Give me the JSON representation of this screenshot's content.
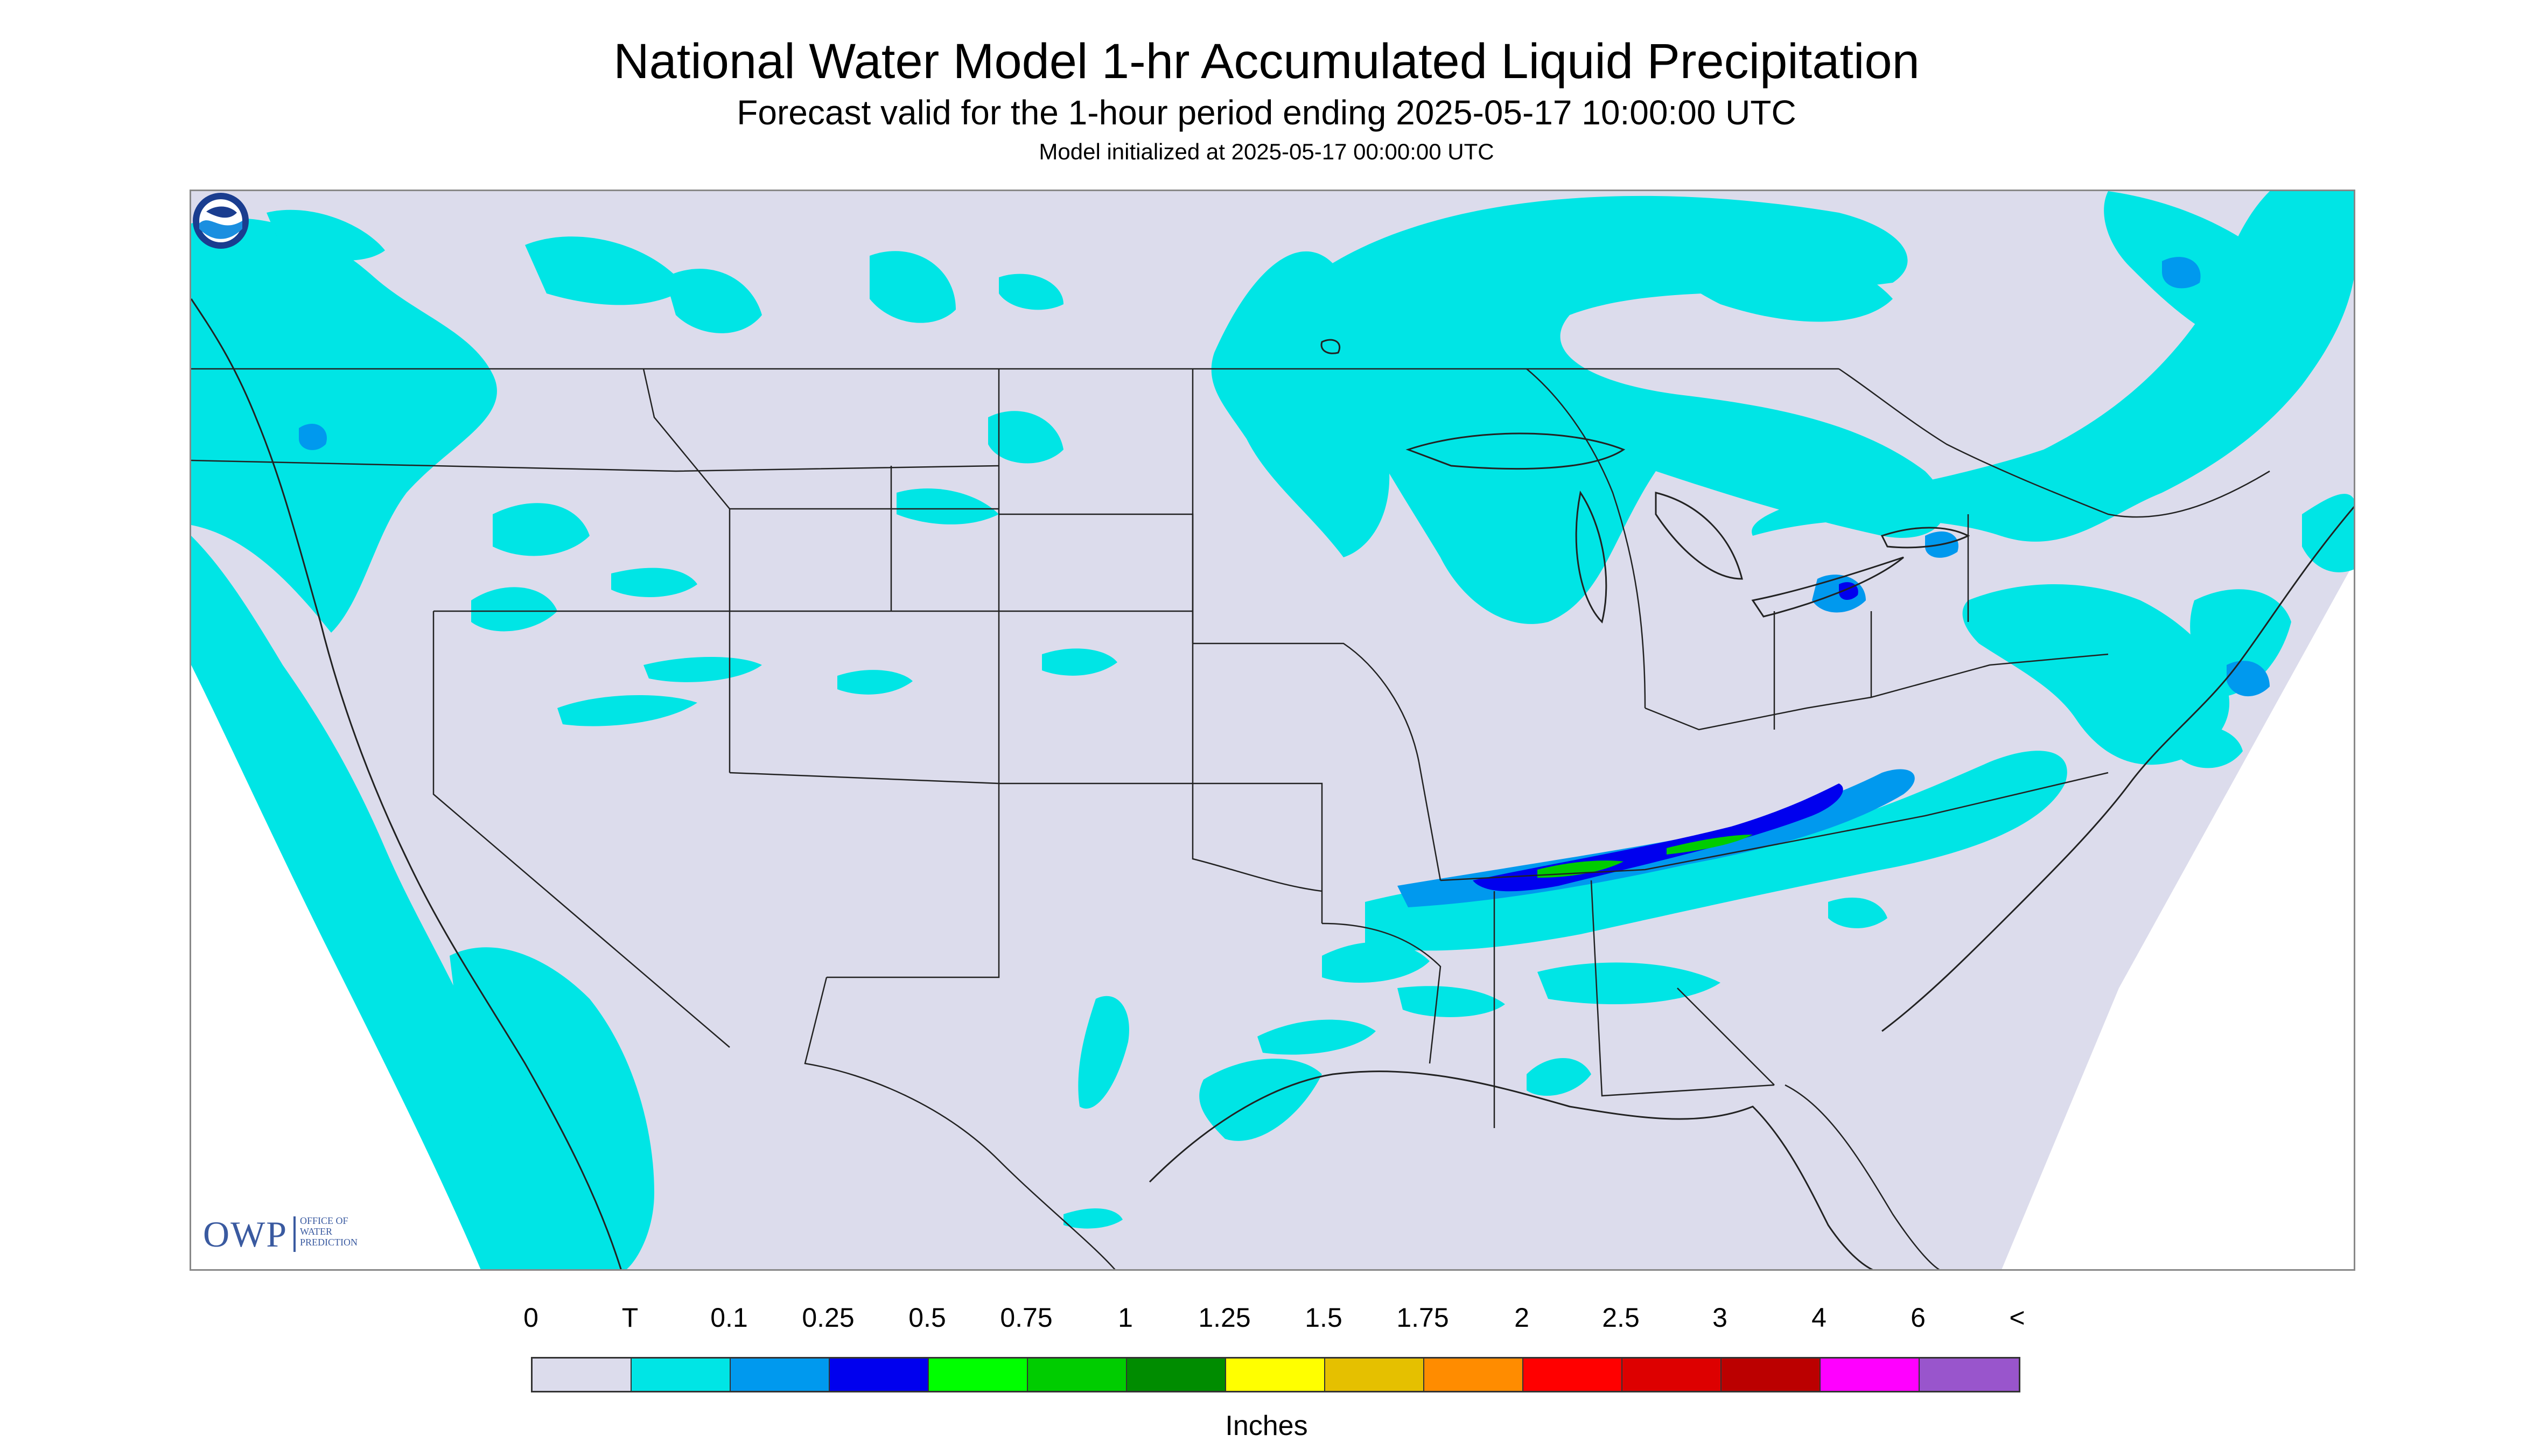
{
  "header": {
    "title": "National Water Model 1-hr Accumulated Liquid Precipitation",
    "subtitle": "Forecast valid for the 1-hour period ending 2025-05-17 10:00:00 UTC",
    "init": "Model initialized at 2025-05-17 00:00:00 UTC"
  },
  "logos": {
    "owp_text": "OWP",
    "owp_sub": "Office of Water Prediction",
    "noaa_text": "NOAA"
  },
  "legend": {
    "labels": [
      "0",
      "T",
      "0.1",
      "0.25",
      "0.5",
      "0.75",
      "1",
      "1.25",
      "1.5",
      "1.75",
      "2",
      "2.5",
      "3",
      "4",
      "6",
      "<"
    ],
    "colors": [
      "#dcdcec",
      "#00e5e5",
      "#0099ee",
      "#0000ee",
      "#00ff00",
      "#00cc00",
      "#008c00",
      "#ffff00",
      "#e5c000",
      "#ff8c00",
      "#ff0000",
      "#dd0000",
      "#bb0000",
      "#ff00ff",
      "#9955cc"
    ],
    "units": "Inches"
  },
  "colors": {
    "no_data": "#ffffff",
    "background": "#dcdcec",
    "trace": "#00e5e5",
    "light": "#0099ee",
    "moderate": "#0000ee",
    "heavy": "#00cc00",
    "boundary": "#222222"
  }
}
